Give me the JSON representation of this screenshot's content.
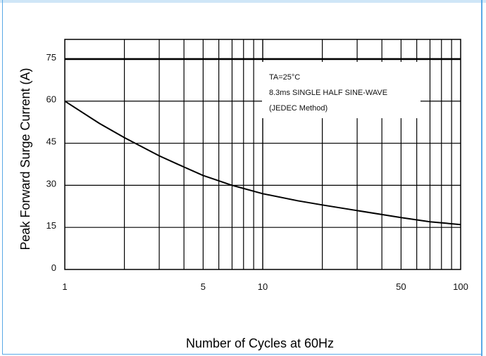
{
  "chart_data": {
    "type": "line",
    "title": "",
    "xlabel": "Number of Cycles at 60Hz",
    "ylabel": "Peak Forward Surge Current (A)",
    "x_scale": "log",
    "xlim": [
      1,
      100
    ],
    "ylim": [
      0,
      82
    ],
    "grid": true,
    "x_ticks": [
      {
        "value": 1,
        "label": "1"
      },
      {
        "value": 5,
        "label": "5"
      },
      {
        "value": 10,
        "label": "10"
      },
      {
        "value": 50,
        "label": "50"
      },
      {
        "value": 100,
        "label": "100"
      }
    ],
    "y_ticks": [
      {
        "value": 0,
        "label": "0"
      },
      {
        "value": 15,
        "label": "15"
      },
      {
        "value": 30,
        "label": "30"
      },
      {
        "value": 45,
        "label": "45"
      },
      {
        "value": 60,
        "label": "60"
      },
      {
        "value": 75,
        "label": "75"
      }
    ],
    "series": [
      {
        "color": "#000000",
        "x": [
          1,
          1.5,
          2,
          3,
          4,
          5,
          7,
          10,
          15,
          20,
          30,
          50,
          70,
          100
        ],
        "y": [
          60,
          52,
          47,
          40.5,
          36.5,
          33.5,
          30,
          27,
          24.5,
          23,
          21,
          18.5,
          17,
          16
        ]
      }
    ],
    "reference_lines": [
      {
        "y": 75,
        "color": "#000000"
      }
    ],
    "annotations": [
      "TA=25°C",
      "8.3ms SINGLE HALF SINE-WAVE",
      "(JEDEC Method)"
    ]
  }
}
